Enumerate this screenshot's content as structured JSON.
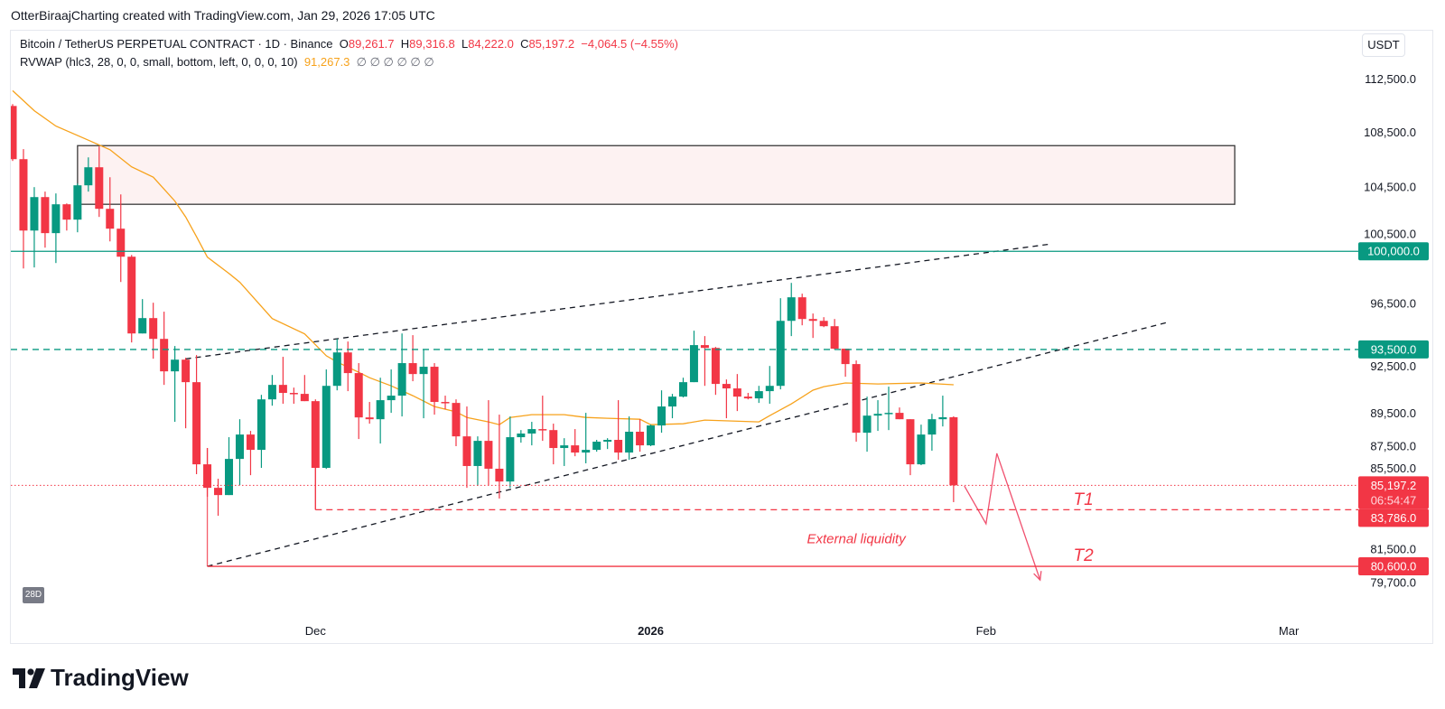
{
  "top_caption": "OtterBiraajCharting created with TradingView.com, Jan 29, 2026 17:05 UTC",
  "header": {
    "symbol": "Bitcoin / TetherUS PERPETUAL CONTRACT · 1D · Binance",
    "o_label": "O",
    "o_value": "89,261.7",
    "h_label": "H",
    "h_value": "89,316.8",
    "l_label": "L",
    "l_value": "84,222.0",
    "c_label": "C",
    "c_value": "85,197.2",
    "change": "−4,064.5 (−4.55%)",
    "indicator": "RVWAP (hlc3, 28, 0, 0, small, bottom, left, 0, 0, 0, 10)",
    "indicator_value": "91,267.3",
    "indicator_extra": "∅ ∅ ∅ ∅ ∅ ∅"
  },
  "currency_button": "USDT",
  "period_badge": "28D",
  "brand": "TradingView",
  "chart_data": {
    "type": "candlestick",
    "scale": "log",
    "ylim": [
      78100,
      116300
    ],
    "xlim": [
      "2025-11-03",
      "2026-03-05"
    ],
    "grid": false,
    "colors": {
      "up": "#089981",
      "down": "#f23645",
      "rvwap": "#f7a21b",
      "level_green": "#089981",
      "level_red": "#f23645"
    },
    "price_ticks": [
      {
        "value": 112500,
        "label": "112,500.0"
      },
      {
        "value": 108500,
        "label": "108,500.0"
      },
      {
        "value": 104500,
        "label": "104,500.0"
      },
      {
        "value": 100500,
        "label": "100,500.0"
      },
      {
        "value": 96500,
        "label": "96,500.0"
      },
      {
        "value": 92500,
        "label": "92,500.0"
      },
      {
        "value": 89500,
        "label": "89,500.0"
      },
      {
        "value": 87500,
        "label": "87,500.0"
      },
      {
        "value": 85500,
        "label": "85,500.0"
      },
      {
        "value": 81500,
        "label": "81,500.0"
      },
      {
        "value": 79700,
        "label": "79,700.0"
      }
    ],
    "date_ticks": [
      {
        "date": "2025-12-01",
        "label": "Dec",
        "bold": false
      },
      {
        "date": "2026-01-01",
        "label": "2026",
        "bold": true
      },
      {
        "date": "2026-02-01",
        "label": "Feb",
        "bold": false
      },
      {
        "date": "2026-03-01",
        "label": "Mar",
        "bold": false
      }
    ],
    "candles": [
      [
        "2025-11-03",
        110460,
        110600,
        106380,
        106510
      ],
      [
        "2025-11-04",
        106510,
        107240,
        98830,
        101430
      ],
      [
        "2025-11-05",
        101430,
        104490,
        98900,
        103780
      ],
      [
        "2025-11-06",
        103780,
        104170,
        100250,
        101250
      ],
      [
        "2025-11-07",
        101250,
        104040,
        99200,
        103270
      ],
      [
        "2025-11-08",
        103270,
        103330,
        101430,
        102190
      ],
      [
        "2025-11-09",
        102190,
        104750,
        101310,
        104620
      ],
      [
        "2025-11-10",
        104620,
        106640,
        104170,
        105920
      ],
      [
        "2025-11-11",
        105920,
        107440,
        102380,
        102950
      ],
      [
        "2025-11-12",
        102950,
        105200,
        100680,
        101560
      ],
      [
        "2025-11-13",
        101560,
        103970,
        97920,
        99630
      ],
      [
        "2025-11-14",
        99630,
        99750,
        93950,
        94530
      ],
      [
        "2025-11-15",
        94530,
        96780,
        94530,
        95530
      ],
      [
        "2025-11-16",
        95530,
        96540,
        92910,
        94180
      ],
      [
        "2025-11-17",
        94180,
        95950,
        91260,
        92110
      ],
      [
        "2025-11-18",
        92110,
        93720,
        88980,
        92850
      ],
      [
        "2025-11-19",
        92850,
        92970,
        88590,
        91430
      ],
      [
        "2025-11-20",
        91430,
        93140,
        85850,
        86430
      ],
      [
        "2025-11-21",
        86430,
        87400,
        84530,
        85050
      ],
      [
        "2025-11-22",
        85050,
        85580,
        83440,
        84630
      ],
      [
        "2025-11-23",
        84630,
        88050,
        84630,
        86750
      ],
      [
        "2025-11-24",
        86750,
        89140,
        85210,
        88210
      ],
      [
        "2025-11-25",
        88210,
        88430,
        85790,
        87290
      ],
      [
        "2025-11-26",
        87290,
        90640,
        86220,
        90360
      ],
      [
        "2025-11-27",
        90360,
        91880,
        89970,
        91260
      ],
      [
        "2025-11-28",
        91260,
        93030,
        90090,
        90760
      ],
      [
        "2025-11-29",
        90760,
        91090,
        90090,
        90700
      ],
      [
        "2025-11-30",
        90700,
        91880,
        90250,
        90250
      ],
      [
        "2025-12-01",
        90250,
        90360,
        83786,
        86220
      ],
      [
        "2025-12-02",
        86220,
        92230,
        86160,
        91200
      ],
      [
        "2025-12-03",
        91200,
        94180,
        90920,
        93310
      ],
      [
        "2025-12-04",
        93310,
        94010,
        90870,
        92000
      ],
      [
        "2025-12-05",
        92000,
        92630,
        87940,
        89250
      ],
      [
        "2025-12-06",
        89250,
        90200,
        88870,
        89140
      ],
      [
        "2025-12-07",
        89140,
        91710,
        87670,
        90310
      ],
      [
        "2025-12-08",
        90310,
        92230,
        89530,
        90590
      ],
      [
        "2025-12-09",
        90590,
        94530,
        89310,
        92630
      ],
      [
        "2025-12-10",
        92630,
        94420,
        91490,
        91940
      ],
      [
        "2025-12-11",
        91940,
        93490,
        89200,
        92400
      ],
      [
        "2025-12-12",
        92400,
        92630,
        89420,
        90200
      ],
      [
        "2025-12-13",
        90200,
        90590,
        89750,
        90140
      ],
      [
        "2025-12-14",
        90140,
        90360,
        87510,
        88100
      ],
      [
        "2025-12-15",
        88100,
        89920,
        85050,
        86330
      ],
      [
        "2025-12-16",
        86330,
        88100,
        85160,
        87830
      ],
      [
        "2025-12-17",
        87830,
        90310,
        85210,
        86170
      ],
      [
        "2025-12-18",
        86170,
        89420,
        84430,
        85420
      ],
      [
        "2025-12-19",
        85420,
        89310,
        85050,
        88050
      ],
      [
        "2025-12-20",
        88050,
        88480,
        87720,
        88270
      ],
      [
        "2025-12-21",
        88270,
        88980,
        87560,
        88540
      ],
      [
        "2025-12-22",
        88540,
        90590,
        87830,
        88480
      ],
      [
        "2025-12-23",
        88480,
        88870,
        86430,
        87400
      ],
      [
        "2025-12-24",
        87400,
        87990,
        86330,
        87560
      ],
      [
        "2025-12-25",
        87560,
        88540,
        86910,
        87130
      ],
      [
        "2025-12-26",
        87130,
        89530,
        86490,
        87290
      ],
      [
        "2025-12-27",
        87290,
        87890,
        87180,
        87780
      ],
      [
        "2025-12-28",
        87780,
        87990,
        87340,
        87890
      ],
      [
        "2025-12-29",
        87890,
        90310,
        86700,
        87130
      ],
      [
        "2025-12-30",
        87130,
        89310,
        86700,
        88380
      ],
      [
        "2025-12-31",
        88380,
        89140,
        87180,
        87560
      ],
      [
        "2026-01-01",
        87560,
        88810,
        87510,
        88760
      ],
      [
        "2026-01-02",
        88760,
        90920,
        88320,
        89920
      ],
      [
        "2026-01-03",
        89920,
        90700,
        89200,
        90530
      ],
      [
        "2026-01-04",
        90530,
        91710,
        90480,
        91430
      ],
      [
        "2026-01-05",
        91430,
        94710,
        91430,
        93780
      ],
      [
        "2026-01-06",
        93780,
        94360,
        91200,
        93600
      ],
      [
        "2026-01-07",
        93600,
        93660,
        90640,
        91320
      ],
      [
        "2026-01-08",
        91320,
        91600,
        89200,
        91040
      ],
      [
        "2026-01-09",
        91040,
        91940,
        89640,
        90530
      ],
      [
        "2026-01-10",
        90530,
        90760,
        90360,
        90420
      ],
      [
        "2026-01-11",
        90420,
        91200,
        90140,
        90870
      ],
      [
        "2026-01-12",
        90870,
        92450,
        90090,
        91200
      ],
      [
        "2026-01-13",
        91200,
        96840,
        90980,
        95350
      ],
      [
        "2026-01-14",
        95350,
        97860,
        94360,
        96900
      ],
      [
        "2026-01-15",
        96900,
        97140,
        95060,
        95470
      ],
      [
        "2026-01-16",
        95470,
        95830,
        94240,
        95350
      ],
      [
        "2026-01-17",
        95350,
        95590,
        94940,
        95000
      ],
      [
        "2026-01-18",
        95000,
        95470,
        93490,
        93550
      ],
      [
        "2026-01-19",
        93550,
        93550,
        91770,
        92570
      ],
      [
        "2026-01-20",
        92570,
        92800,
        87780,
        88320
      ],
      [
        "2026-01-21",
        88320,
        90530,
        87180,
        89360
      ],
      [
        "2026-01-22",
        89360,
        90310,
        88430,
        89470
      ],
      [
        "2026-01-23",
        89470,
        91150,
        88480,
        89530
      ],
      [
        "2026-01-24",
        89530,
        89860,
        89140,
        89140
      ],
      [
        "2026-01-25",
        89140,
        89140,
        85790,
        86430
      ],
      [
        "2026-01-26",
        86430,
        88810,
        86380,
        88210
      ],
      [
        "2026-01-27",
        88210,
        89470,
        87240,
        89140
      ],
      [
        "2026-01-28",
        89140,
        90590,
        88700,
        89262
      ],
      [
        "2026-01-29",
        89261.7,
        89316.8,
        84222.0,
        85197.2
      ]
    ],
    "rvwap": [
      [
        "2025-11-03",
        111620
      ],
      [
        "2025-11-05",
        110100
      ],
      [
        "2025-11-07",
        108950
      ],
      [
        "2025-11-10",
        107900
      ],
      [
        "2025-11-12",
        107200
      ],
      [
        "2025-11-14",
        105950
      ],
      [
        "2025-11-16",
        105200
      ],
      [
        "2025-11-18",
        103500
      ],
      [
        "2025-11-19",
        102380
      ],
      [
        "2025-11-20",
        101000
      ],
      [
        "2025-11-21",
        99600
      ],
      [
        "2025-11-23",
        98500
      ],
      [
        "2025-11-24",
        97900
      ],
      [
        "2025-11-27",
        95500
      ],
      [
        "2025-11-30",
        94500
      ],
      [
        "2025-12-01",
        93800
      ],
      [
        "2025-12-02",
        93100
      ],
      [
        "2025-12-03",
        92700
      ],
      [
        "2025-12-05",
        92050
      ],
      [
        "2025-12-06",
        91710
      ],
      [
        "2025-12-08",
        91200
      ],
      [
        "2025-12-10",
        90590
      ],
      [
        "2025-12-12",
        89920
      ],
      [
        "2025-12-14",
        89590
      ],
      [
        "2025-12-15",
        89250
      ],
      [
        "2025-12-17",
        88980
      ],
      [
        "2025-12-18",
        88810
      ],
      [
        "2025-12-19",
        89250
      ],
      [
        "2025-12-21",
        89420
      ],
      [
        "2025-12-24",
        89420
      ],
      [
        "2025-12-26",
        89250
      ],
      [
        "2025-12-28",
        89200
      ],
      [
        "2025-12-31",
        89140
      ],
      [
        "2026-01-01",
        88810
      ],
      [
        "2026-01-04",
        88860
      ],
      [
        "2026-01-06",
        89090
      ],
      [
        "2026-01-11",
        88980
      ],
      [
        "2026-01-12",
        89360
      ],
      [
        "2026-01-14",
        90080
      ],
      [
        "2026-01-16",
        90930
      ],
      [
        "2026-01-17",
        91150
      ],
      [
        "2026-01-19",
        91380
      ],
      [
        "2026-01-22",
        91320
      ],
      [
        "2026-01-26",
        91380
      ],
      [
        "2026-01-29",
        91267.3
      ]
    ],
    "levels": [
      {
        "value": 100000,
        "label": "100,000.0",
        "color": "#089981",
        "style": "solid"
      },
      {
        "value": 93500,
        "label": "93,500.0",
        "color": "#089981",
        "style": "dashed"
      },
      {
        "value": 85197.2,
        "label": "85,197.2",
        "sublabel": "06:54:47",
        "color": "#f23645",
        "style": "dotted"
      },
      {
        "value": 83786,
        "label": "83,786.0",
        "color": "#f23645",
        "style": "dashed",
        "from": "2025-12-01",
        "vertical_from": 86220
      },
      {
        "value": 80600,
        "label": "80,600.0",
        "color": "#f23645",
        "style": "solid",
        "from": "2025-11-21",
        "vertical_from": 87400
      }
    ],
    "zone": {
      "from": "2025-11-09",
      "to": "2026-02-24",
      "top": 107500,
      "bottom": 103270
    },
    "trendlines": [
      {
        "points": [
          [
            "2025-11-19",
            92900
          ],
          [
            "2026-02-07",
            100500
          ]
        ]
      },
      {
        "points": [
          [
            "2025-11-21",
            80600
          ],
          [
            "2026-02-18",
            95290
          ]
        ]
      }
    ],
    "projection": [
      [
        "2026-01-30",
        85160
      ],
      [
        "2026-02-01",
        82980
      ],
      [
        "2026-02-02",
        87080
      ],
      [
        "2026-02-06",
        79850
      ]
    ],
    "annotations": [
      {
        "text": "T1",
        "date": "2026-02-10",
        "value": 84374
      },
      {
        "text": "T2",
        "date": "2026-02-10",
        "value": 81190
      },
      {
        "text": "External liquidity",
        "date": "2026-01-20",
        "value": 82180
      }
    ]
  }
}
